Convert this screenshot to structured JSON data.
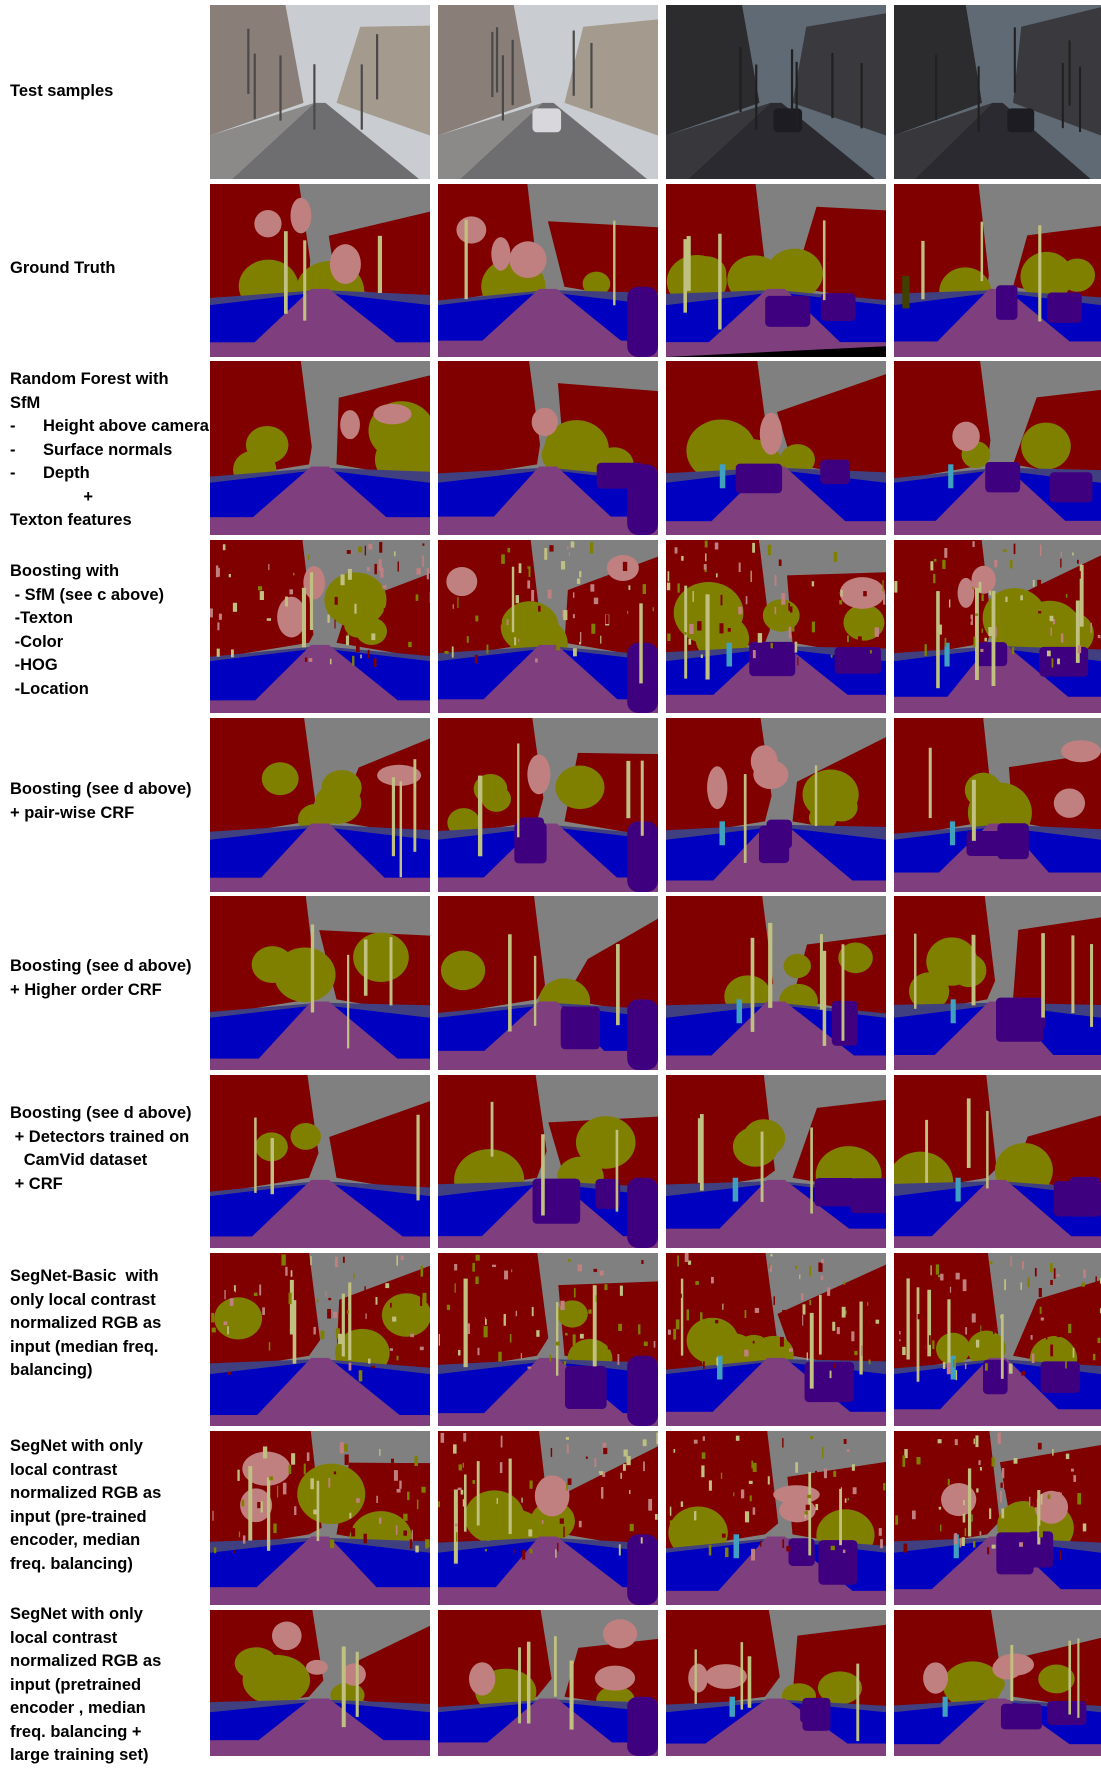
{
  "figure": {
    "columns": [
      "sample-1",
      "sample-2",
      "sample-3",
      "sample-4"
    ],
    "rows": [
      {
        "id": "test-samples",
        "kind": "photo",
        "lines": [
          "Test samples"
        ]
      },
      {
        "id": "ground-truth",
        "kind": "seg",
        "lines": [
          "Ground Truth"
        ]
      },
      {
        "id": "random-forest",
        "kind": "seg",
        "lines": [
          "Random Forest with",
          "SfM",
          "-      Height above camera",
          "-      Surface normals",
          "-      Depth",
          "                +",
          "Texton features"
        ]
      },
      {
        "id": "boosting",
        "kind": "seg",
        "lines": [
          "Boosting with",
          " - SfM (see c above)",
          " -Texton",
          " -Color",
          " -HOG",
          " -Location"
        ]
      },
      {
        "id": "boosting-pairwise-crf",
        "kind": "seg",
        "lines": [
          "Boosting (see d above)",
          "+ pair-wise CRF"
        ]
      },
      {
        "id": "boosting-higher-order-crf",
        "kind": "seg",
        "lines": [
          "Boosting (see d above)",
          "+ Higher order CRF"
        ]
      },
      {
        "id": "boosting-detectors-crf",
        "kind": "seg",
        "lines": [
          "Boosting (see d above)",
          " + Detectors trained on",
          "   CamVid dataset",
          " + CRF"
        ]
      },
      {
        "id": "segnet-basic",
        "kind": "seg",
        "lines": [
          "SegNet-Basic  with",
          "only local contrast",
          "normalized RGB as",
          "input (median freq.",
          "balancing)"
        ]
      },
      {
        "id": "segnet-pretrained",
        "kind": "seg",
        "lines": [
          "SegNet with only",
          "local contrast",
          "normalized RGB as",
          "input (pre-trained",
          "encoder, median",
          "freq. balancing)"
        ]
      },
      {
        "id": "segnet-large-set",
        "kind": "seg",
        "lines": [
          "SegNet with only",
          "local contrast",
          "normalized RGB as",
          "input (pretrained",
          "encoder , median",
          "freq. balancing +",
          "large training set)"
        ]
      }
    ]
  },
  "legend_colors": {
    "sky": "#808080",
    "building": "#800000",
    "tree": "#808000",
    "road": "#7f3f7f",
    "pavement": "#0000c0",
    "sign_symbol": "#c08080",
    "column_pole": "#c0c080",
    "car": "#3f007f",
    "pedestrian": "#3fa0c0",
    "fence": "#404080",
    "bicyclist": "#404000"
  }
}
